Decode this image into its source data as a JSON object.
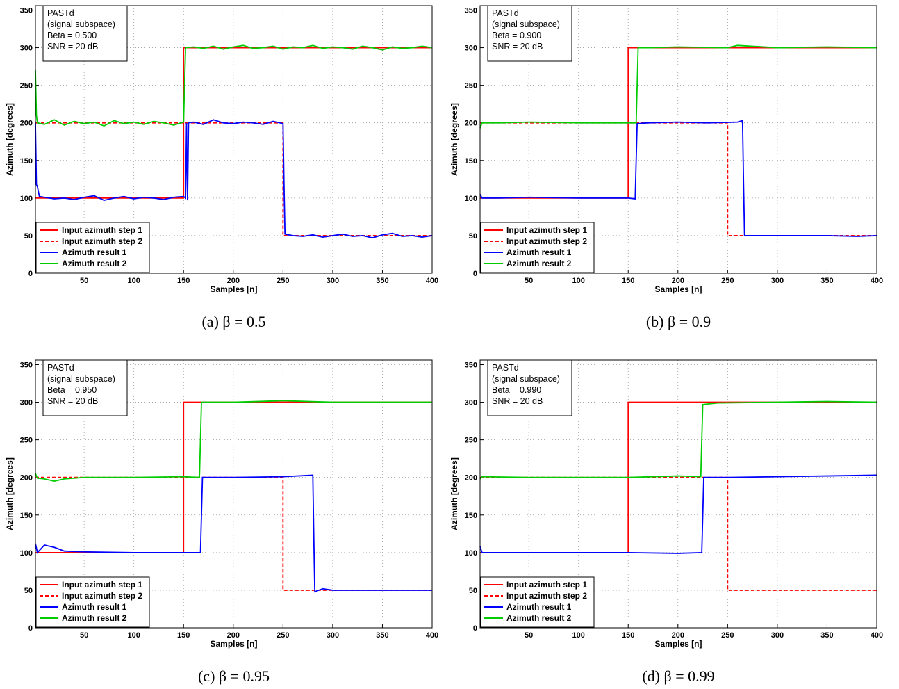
{
  "chart_data": [
    {
      "type": "line",
      "caption": "(a) β = 0.5",
      "annotation": [
        "PASTd",
        "(signal subspace)",
        "Beta = 0.500",
        "SNR = 20 dB"
      ],
      "xlabel": "Samples [n]",
      "ylabel": "Azimuth [degrees]",
      "xlim": [
        1,
        400
      ],
      "ylim": [
        0,
        356
      ],
      "xticks": [
        50,
        100,
        150,
        200,
        250,
        300,
        350,
        400
      ],
      "yticks": [
        0,
        50,
        100,
        150,
        200,
        250,
        300,
        350
      ],
      "grid": true,
      "legend": "lower left",
      "series": [
        {
          "name": "Input azimuth step 1",
          "color": "#ff0000",
          "linestyle": "solid",
          "x": [
            1,
            150,
            150,
            400
          ],
          "values": [
            100,
            100,
            300,
            300
          ]
        },
        {
          "name": "Input azimuth step 2",
          "color": "#ff0000",
          "linestyle": "dashed",
          "x": [
            1,
            250,
            250,
            400
          ],
          "values": [
            200,
            200,
            50,
            50
          ]
        },
        {
          "name": "Azimuth result 1",
          "color": "#0000ff",
          "linestyle": "solid",
          "x": [
            1,
            2,
            3,
            5,
            10,
            20,
            30,
            40,
            50,
            60,
            70,
            80,
            90,
            100,
            110,
            120,
            130,
            140,
            150,
            152,
            153,
            154,
            155,
            160,
            170,
            180,
            190,
            200,
            210,
            220,
            230,
            240,
            250,
            251,
            252,
            260,
            270,
            280,
            290,
            300,
            310,
            320,
            330,
            340,
            350,
            360,
            370,
            380,
            390,
            400
          ],
          "values": [
            200,
            118,
            115,
            102,
            101,
            99,
            100,
            98,
            101,
            103,
            97,
            100,
            102,
            99,
            101,
            100,
            98,
            101,
            102,
            100,
            200,
            97,
            200,
            201,
            198,
            204,
            200,
            199,
            201,
            200,
            198,
            202,
            199,
            120,
            52,
            50,
            49,
            51,
            48,
            50,
            52,
            49,
            50,
            47,
            51,
            53,
            49,
            50,
            48,
            50
          ]
        },
        {
          "name": "Azimuth result 2",
          "color": "#00cc00",
          "linestyle": "solid",
          "x": [
            1,
            2,
            3,
            10,
            20,
            30,
            40,
            50,
            60,
            70,
            80,
            90,
            100,
            110,
            120,
            130,
            140,
            150,
            151,
            152,
            160,
            170,
            180,
            190,
            200,
            210,
            220,
            230,
            240,
            250,
            260,
            270,
            280,
            290,
            300,
            310,
            320,
            330,
            340,
            350,
            360,
            370,
            380,
            390,
            400
          ],
          "values": [
            270,
            210,
            200,
            198,
            204,
            197,
            202,
            199,
            201,
            196,
            203,
            199,
            201,
            198,
            202,
            200,
            197,
            201,
            250,
            300,
            301,
            299,
            302,
            298,
            301,
            303,
            299,
            300,
            302,
            298,
            301,
            300,
            303,
            299,
            301,
            300,
            298,
            302,
            300,
            297,
            301,
            299,
            300,
            302,
            300
          ]
        }
      ]
    },
    {
      "type": "line",
      "caption": "(b) β = 0.9",
      "annotation": [
        "PASTd",
        "(signal subspace)",
        "Beta = 0.900",
        "SNR = 20 dB"
      ],
      "xlabel": "Samples [n]",
      "ylabel": "Azimuth [degrees]",
      "xlim": [
        1,
        400
      ],
      "ylim": [
        0,
        356
      ],
      "xticks": [
        50,
        100,
        150,
        200,
        250,
        300,
        350,
        400
      ],
      "yticks": [
        0,
        50,
        100,
        150,
        200,
        250,
        300,
        350
      ],
      "grid": true,
      "legend": "lower left",
      "series": [
        {
          "name": "Input azimuth step 1",
          "color": "#ff0000",
          "linestyle": "solid",
          "x": [
            1,
            150,
            150,
            400
          ],
          "values": [
            100,
            100,
            300,
            300
          ]
        },
        {
          "name": "Input azimuth step 2",
          "color": "#ff0000",
          "linestyle": "dashed",
          "x": [
            1,
            250,
            250,
            400
          ],
          "values": [
            200,
            200,
            50,
            50
          ]
        },
        {
          "name": "Azimuth result 1",
          "color": "#0000ff",
          "linestyle": "solid",
          "x": [
            1,
            3,
            20,
            50,
            100,
            150,
            157,
            158,
            159,
            170,
            200,
            230,
            260,
            265,
            266,
            267,
            270,
            300,
            350,
            380,
            400
          ],
          "values": [
            105,
            100,
            100,
            101,
            100,
            100,
            99,
            150,
            199,
            200,
            201,
            200,
            201,
            203,
            120,
            50,
            50,
            50,
            50,
            49,
            50
          ]
        },
        {
          "name": "Azimuth result 2",
          "color": "#00cc00",
          "linestyle": "solid",
          "x": [
            1,
            3,
            20,
            50,
            100,
            150,
            158,
            159,
            160,
            170,
            200,
            250,
            260,
            300,
            350,
            400
          ],
          "values": [
            193,
            200,
            200,
            201,
            200,
            200,
            200,
            250,
            300,
            300,
            301,
            300,
            303,
            300,
            301,
            300
          ]
        }
      ]
    },
    {
      "type": "line",
      "caption": "(c) β = 0.95",
      "annotation": [
        "PASTd",
        "(signal subspace)",
        "Beta = 0.950",
        "SNR = 20 dB"
      ],
      "xlabel": "Samples [n]",
      "ylabel": "Azimuth [degrees]",
      "xlim": [
        1,
        400
      ],
      "ylim": [
        0,
        356
      ],
      "xticks": [
        50,
        100,
        150,
        200,
        250,
        300,
        350,
        400
      ],
      "yticks": [
        0,
        50,
        100,
        150,
        200,
        250,
        300,
        350
      ],
      "grid": true,
      "legend": "lower left",
      "series": [
        {
          "name": "Input azimuth step 1",
          "color": "#ff0000",
          "linestyle": "solid",
          "x": [
            1,
            150,
            150,
            400
          ],
          "values": [
            100,
            100,
            300,
            300
          ]
        },
        {
          "name": "Input azimuth step 2",
          "color": "#ff0000",
          "linestyle": "dashed",
          "x": [
            1,
            250,
            250,
            400
          ],
          "values": [
            200,
            200,
            50,
            50
          ]
        },
        {
          "name": "Azimuth result 1",
          "color": "#0000ff",
          "linestyle": "solid",
          "x": [
            1,
            3,
            10,
            20,
            30,
            50,
            100,
            150,
            167,
            168,
            169,
            200,
            250,
            280,
            281,
            282,
            290,
            300,
            350,
            400
          ],
          "values": [
            112,
            100,
            110,
            107,
            102,
            101,
            100,
            100,
            100,
            150,
            200,
            200,
            201,
            203,
            120,
            48,
            52,
            50,
            50,
            50
          ]
        },
        {
          "name": "Azimuth result 2",
          "color": "#00cc00",
          "linestyle": "solid",
          "x": [
            1,
            3,
            10,
            20,
            30,
            50,
            100,
            150,
            166,
            167,
            168,
            200,
            250,
            300,
            350,
            400
          ],
          "values": [
            205,
            199,
            198,
            195,
            198,
            200,
            200,
            201,
            200,
            250,
            300,
            300,
            302,
            300,
            300,
            300
          ]
        }
      ]
    },
    {
      "type": "line",
      "caption": "(d) β = 0.99",
      "annotation": [
        "PASTd",
        "(signal subspace)",
        "Beta = 0.990",
        "SNR = 20 dB"
      ],
      "xlabel": "Samples [n]",
      "ylabel": "Azimuth [degrees]",
      "xlim": [
        1,
        400
      ],
      "ylim": [
        0,
        356
      ],
      "xticks": [
        50,
        100,
        150,
        200,
        250,
        300,
        350,
        400
      ],
      "yticks": [
        0,
        50,
        100,
        150,
        200,
        250,
        300,
        350
      ],
      "grid": true,
      "legend": "lower left",
      "series": [
        {
          "name": "Input azimuth step 1",
          "color": "#ff0000",
          "linestyle": "solid",
          "x": [
            1,
            150,
            150,
            400
          ],
          "values": [
            100,
            100,
            300,
            300
          ]
        },
        {
          "name": "Input azimuth step 2",
          "color": "#ff0000",
          "linestyle": "dashed",
          "x": [
            1,
            250,
            250,
            400
          ],
          "values": [
            200,
            200,
            50,
            50
          ]
        },
        {
          "name": "Azimuth result 1",
          "color": "#0000ff",
          "linestyle": "solid",
          "x": [
            1,
            3,
            50,
            100,
            150,
            200,
            224,
            225,
            226,
            250,
            300,
            350,
            400
          ],
          "values": [
            108,
            100,
            100,
            100,
            100,
            99,
            100,
            150,
            200,
            200,
            201,
            202,
            203
          ]
        },
        {
          "name": "Azimuth result 2",
          "color": "#00cc00",
          "linestyle": "solid",
          "x": [
            1,
            3,
            50,
            100,
            150,
            200,
            223,
            224,
            225,
            240,
            300,
            350,
            400
          ],
          "values": [
            198,
            201,
            200,
            200,
            200,
            202,
            201,
            250,
            297,
            299,
            300,
            301,
            300
          ]
        }
      ]
    }
  ]
}
